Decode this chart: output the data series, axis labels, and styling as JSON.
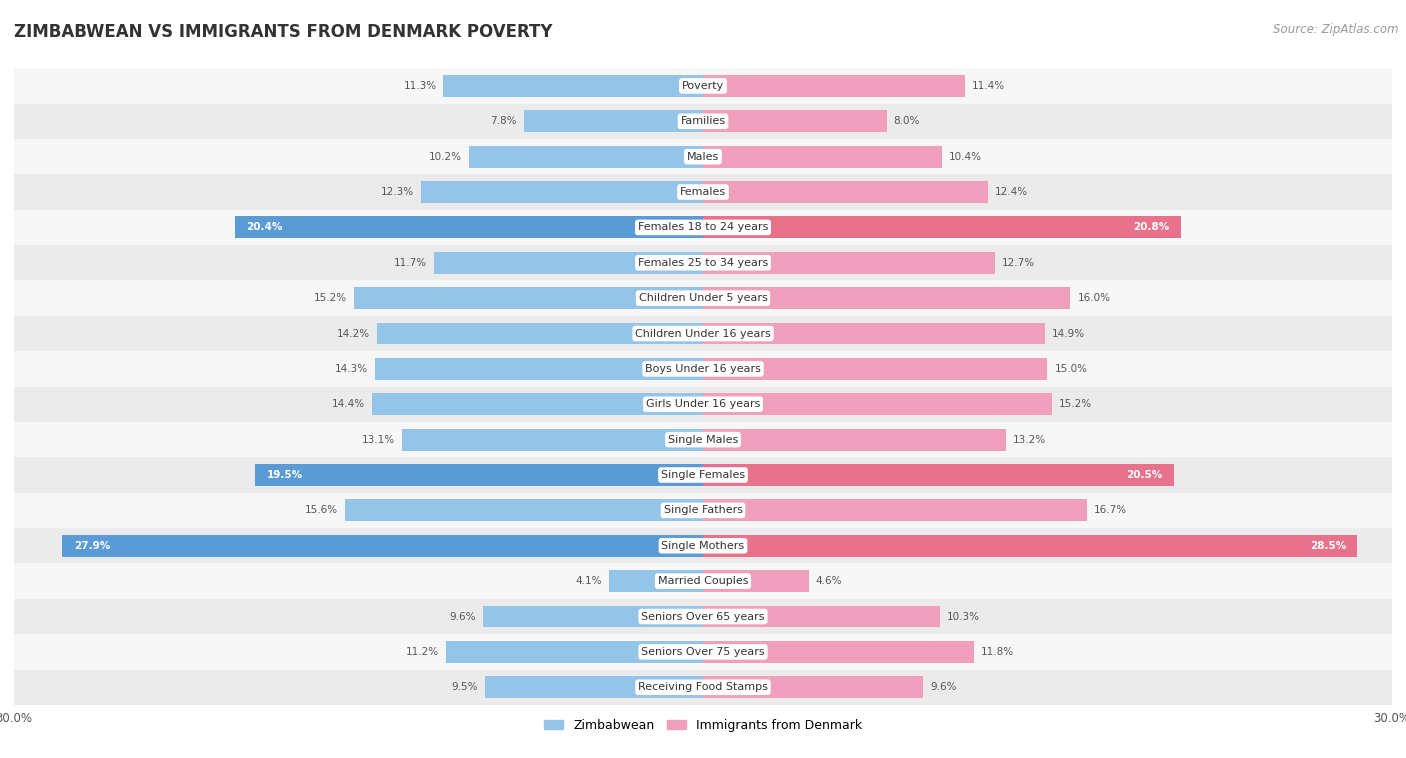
{
  "title": "ZIMBABWEAN VS IMMIGRANTS FROM DENMARK POVERTY",
  "source": "Source: ZipAtlas.com",
  "categories": [
    "Poverty",
    "Families",
    "Males",
    "Females",
    "Females 18 to 24 years",
    "Females 25 to 34 years",
    "Children Under 5 years",
    "Children Under 16 years",
    "Boys Under 16 years",
    "Girls Under 16 years",
    "Single Males",
    "Single Females",
    "Single Fathers",
    "Single Mothers",
    "Married Couples",
    "Seniors Over 65 years",
    "Seniors Over 75 years",
    "Receiving Food Stamps"
  ],
  "zimbabwean": [
    11.3,
    7.8,
    10.2,
    12.3,
    20.4,
    11.7,
    15.2,
    14.2,
    14.3,
    14.4,
    13.1,
    19.5,
    15.6,
    27.9,
    4.1,
    9.6,
    11.2,
    9.5
  ],
  "denmark": [
    11.4,
    8.0,
    10.4,
    12.4,
    20.8,
    12.7,
    16.0,
    14.9,
    15.0,
    15.2,
    13.2,
    20.5,
    16.7,
    28.5,
    4.6,
    10.3,
    11.8,
    9.6
  ],
  "zimbabwean_color": "#94C4E8",
  "denmark_color": "#F0A0BC",
  "highlight_threshold": 18.0,
  "zimbabwean_highlight_color": "#5B9BD5",
  "denmark_highlight_color": "#E8718C",
  "axis_max": 30.0,
  "bar_height": 0.62,
  "bg_color": "#FFFFFF",
  "row_even_color": "#EBEBEB",
  "row_odd_color": "#F7F7F7",
  "label_color_dark": "#555555",
  "label_color_light": "#FFFFFF",
  "legend_label_zimbabwean": "Zimbabwean",
  "legend_label_denmark": "Immigrants from Denmark",
  "title_fontsize": 12,
  "source_fontsize": 8.5,
  "category_fontsize": 8,
  "value_fontsize": 7.5,
  "axis_label_fontsize": 8.5
}
